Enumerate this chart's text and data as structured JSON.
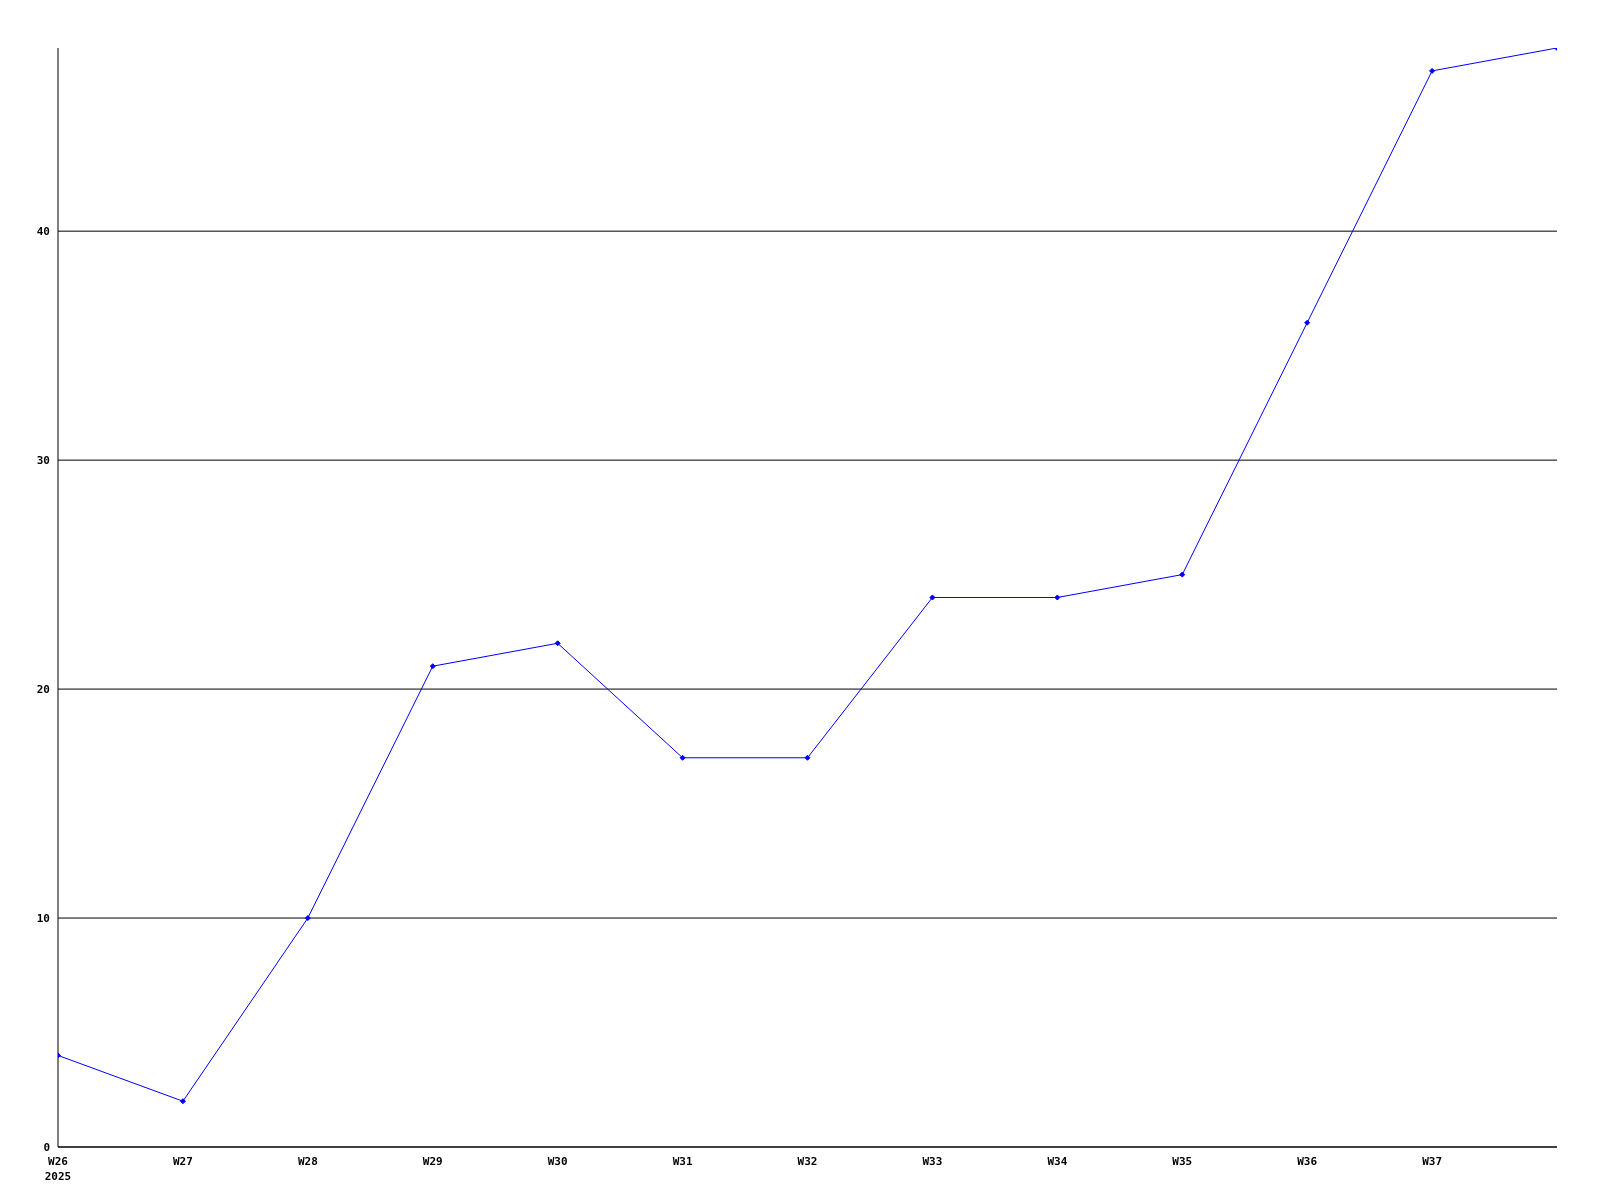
{
  "chart_data": {
    "type": "line",
    "categories": [
      "W26\n2025",
      "W27",
      "W28",
      "W29",
      "W30",
      "W31",
      "W32",
      "W33",
      "W34",
      "W35",
      "W36",
      "W37",
      null
    ],
    "series": [
      {
        "color": "#0000ff",
        "values": [
          4,
          2,
          10,
          21,
          22,
          17,
          17,
          24,
          24,
          25,
          36,
          47,
          48
        ]
      }
    ],
    "ylim": [
      0,
      48
    ],
    "yticks": [
      0,
      10,
      20,
      30,
      40
    ],
    "grid": "y",
    "marker": "diamond",
    "line_style": "solid"
  }
}
